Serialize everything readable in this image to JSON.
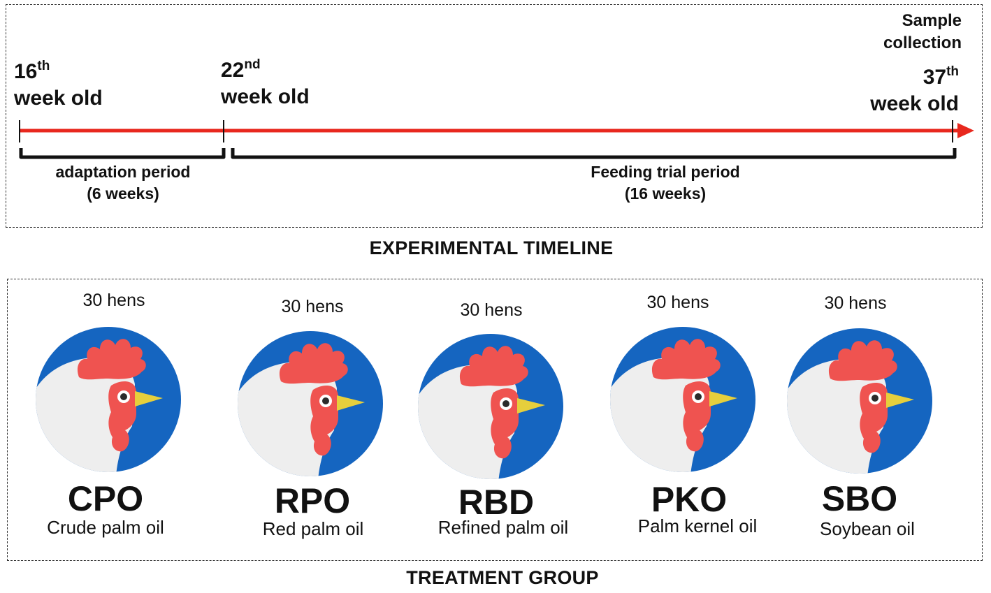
{
  "timeline": {
    "title": "EXPERIMENTAL TIMELINE",
    "start": {
      "ordinal": "16",
      "suffix": "th",
      "label": "week old"
    },
    "switch": {
      "ordinal": "22",
      "suffix": "nd",
      "label": "week old"
    },
    "end": {
      "ordinal": "37",
      "suffix": "th",
      "label": "week old",
      "note_line1": "Sample",
      "note_line2": "collection"
    },
    "adaptation": {
      "line1": "adaptation period",
      "line2": "(6 weeks)"
    },
    "feeding": {
      "line1": "Feeding trial period",
      "line2": "(16 weeks)"
    },
    "arrow_color": "#e8281e"
  },
  "treatment": {
    "title": "TREATMENT GROUP",
    "groups": [
      {
        "count": "30 hens",
        "code": "CPO",
        "name": "Crude palm oil"
      },
      {
        "count": "30 hens",
        "code": "RPO",
        "name": "Red palm oil"
      },
      {
        "count": "30 hens",
        "code": "RBD",
        "name": "Refined palm oil"
      },
      {
        "count": "30 hens",
        "code": "PKO",
        "name": "Palm kernel oil"
      },
      {
        "count": "30 hens",
        "code": "SBO",
        "name": "Soybean oil"
      }
    ],
    "colors": {
      "circle": "#1565c0",
      "comb": "#ef5350",
      "head": "#eeeeee",
      "beak": "#e6cf3c"
    }
  }
}
